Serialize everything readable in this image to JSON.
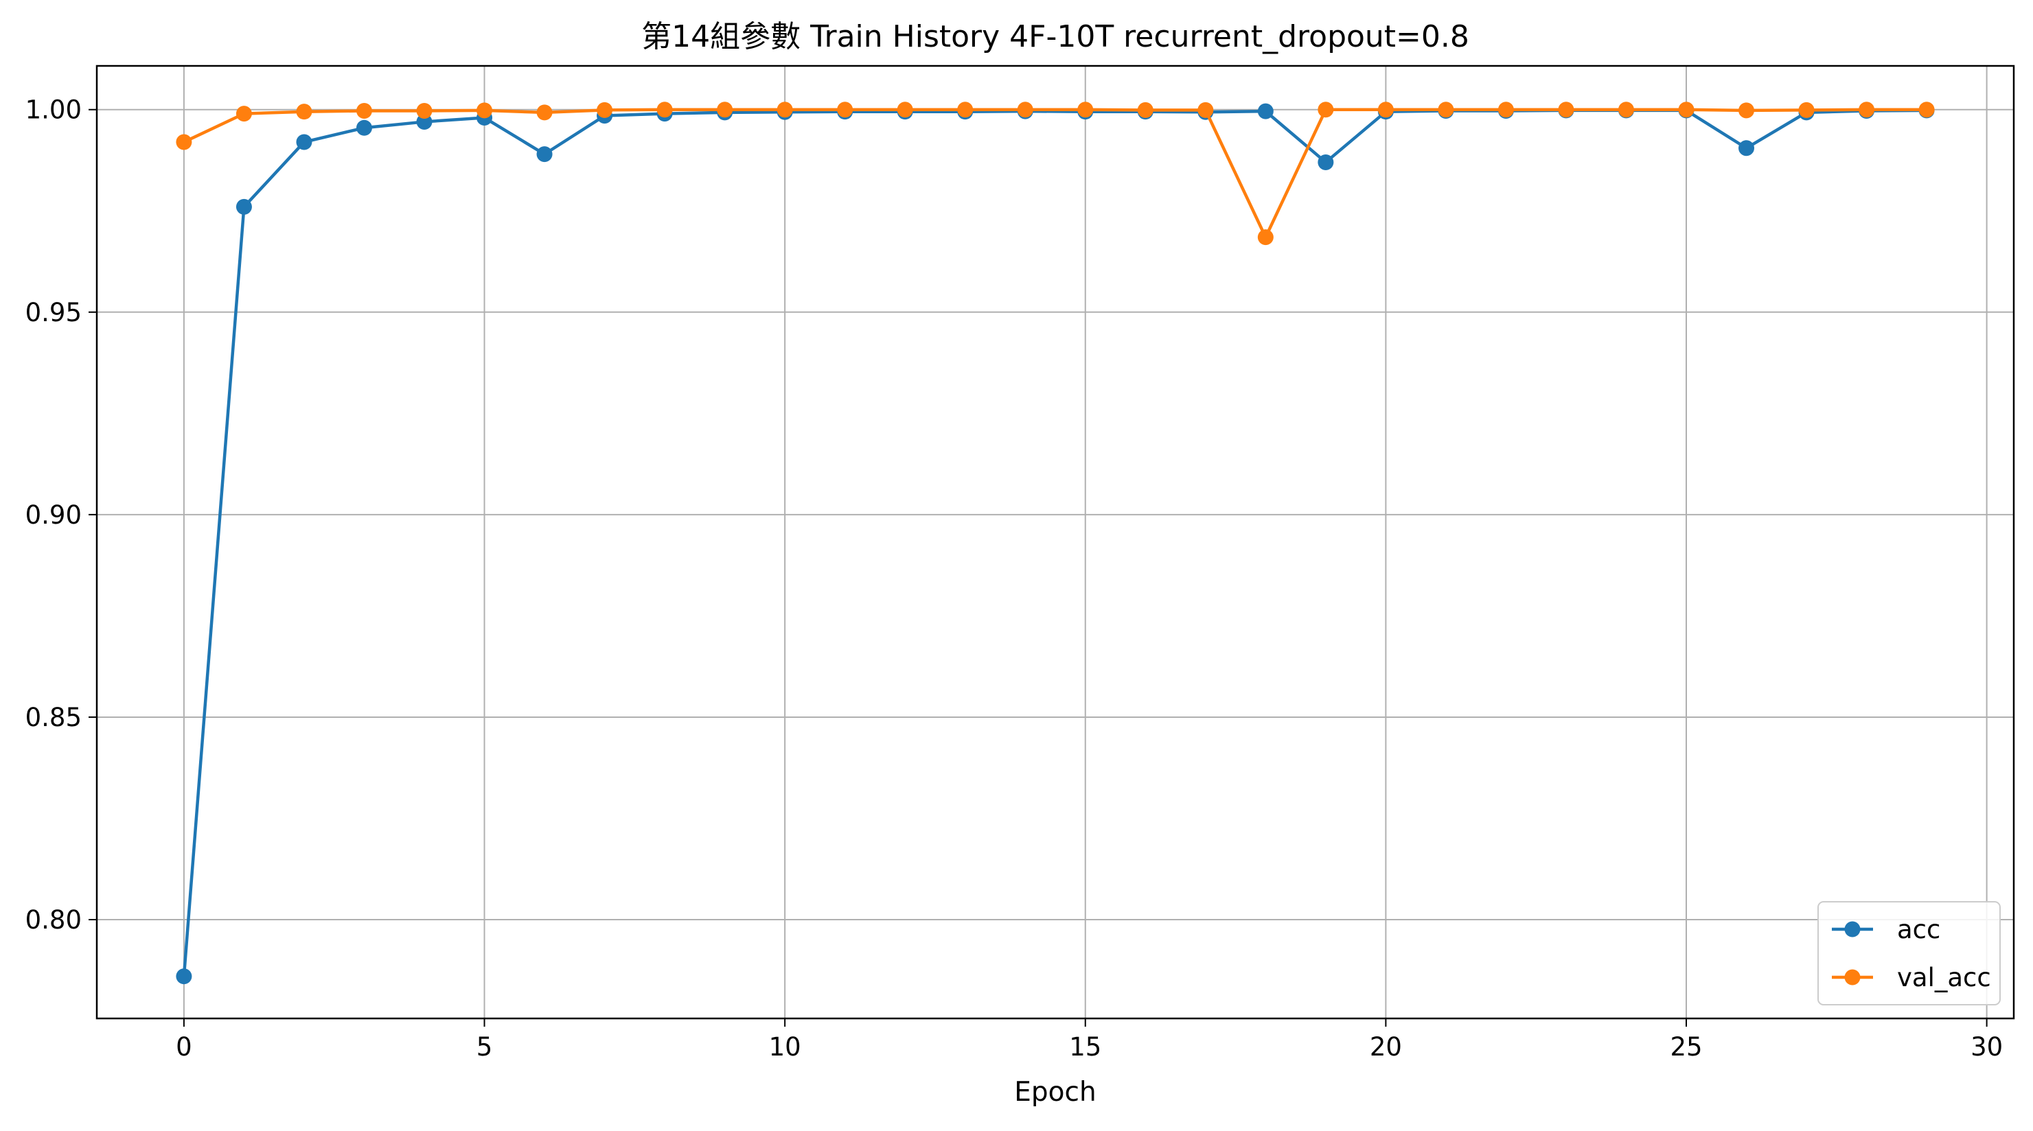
{
  "chart_data": {
    "type": "line",
    "title": "第14組參數 Train History 4F-10T recurrent_dropout=0.8",
    "xlabel": "Epoch",
    "ylabel": "",
    "xlim": [
      -1.45,
      30.45
    ],
    "ylim": [
      0.7756,
      1.0108
    ],
    "xticks": [
      0,
      5,
      10,
      15,
      20,
      25,
      30
    ],
    "xtick_labels": [
      "0",
      "5",
      "10",
      "15",
      "20",
      "25",
      "30"
    ],
    "yticks": [
      0.8,
      0.85,
      0.9,
      0.95,
      1.0
    ],
    "ytick_labels": [
      "0.80",
      "0.85",
      "0.90",
      "0.95",
      "1.00"
    ],
    "grid": true,
    "legend_position": "lower-right",
    "x": [
      0,
      1,
      2,
      3,
      4,
      5,
      6,
      7,
      8,
      9,
      10,
      11,
      12,
      13,
      14,
      15,
      16,
      17,
      18,
      19,
      20,
      21,
      22,
      23,
      24,
      25,
      26,
      27,
      28,
      29
    ],
    "series": [
      {
        "name": "acc",
        "color": "#1f77b4",
        "marker": "circle",
        "values": [
          0.786,
          0.976,
          0.992,
          0.9955,
          0.997,
          0.998,
          0.989,
          0.9985,
          0.999,
          0.9993,
          0.9994,
          0.9995,
          0.9995,
          0.9995,
          0.9996,
          0.9995,
          0.9995,
          0.9994,
          0.9996,
          0.987,
          0.9995,
          0.9997,
          0.9997,
          0.9998,
          0.9998,
          0.9998,
          0.9905,
          0.9993,
          0.9997,
          0.9998
        ]
      },
      {
        "name": "val_acc",
        "color": "#ff7f0e",
        "marker": "circle",
        "values": [
          0.992,
          0.999,
          0.9995,
          0.9997,
          0.9997,
          0.9998,
          0.9993,
          0.9999,
          1.0,
          1.0,
          1.0,
          1.0,
          1.0,
          1.0,
          1.0,
          1.0,
          0.9999,
          0.9999,
          0.9685,
          1.0,
          1.0,
          1.0,
          1.0,
          1.0,
          1.0,
          1.0,
          0.9998,
          0.9999,
          1.0,
          1.0
        ]
      }
    ]
  }
}
